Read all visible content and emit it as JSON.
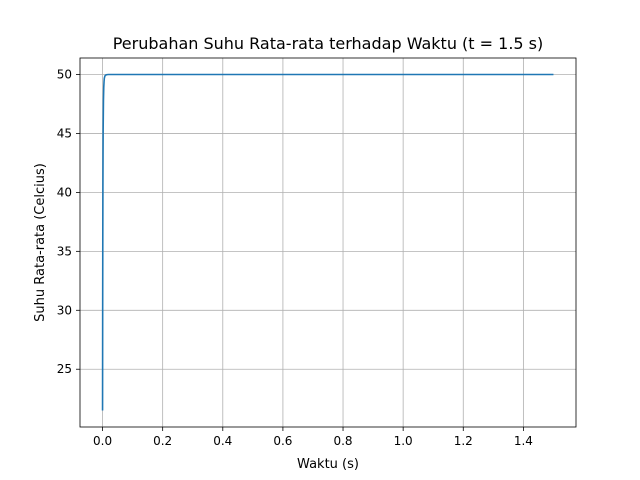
{
  "chart_data": {
    "type": "line",
    "title": "Perubahan Suhu Rata-rata terhadap Waktu (t = 1.5 s)",
    "xlabel": "Waktu (s)",
    "ylabel": "Suhu Rata-rata (Celcius)",
    "xlim": [
      -0.075,
      1.575
    ],
    "ylim": [
      20.1,
      51.4
    ],
    "x_ticks": [
      0.0,
      0.2,
      0.4,
      0.6,
      0.8,
      1.0,
      1.2,
      1.4
    ],
    "x_tick_labels": [
      "0.0",
      "0.2",
      "0.4",
      "0.6",
      "0.8",
      "1.0",
      "1.2",
      "1.4"
    ],
    "y_ticks": [
      25,
      30,
      35,
      40,
      45,
      50
    ],
    "y_tick_labels": [
      "25",
      "30",
      "35",
      "40",
      "45",
      "50"
    ],
    "grid": true,
    "colors": {
      "series": "#1f77b4"
    },
    "series": [
      {
        "x": [
          0.0,
          0.0004,
          0.0008,
          0.0012,
          0.0016,
          0.002,
          0.003,
          0.004,
          0.005,
          0.006,
          0.008,
          0.01,
          0.015,
          0.02,
          0.05,
          0.1,
          0.5,
          1.0,
          1.5
        ],
        "values": [
          21.5,
          30.0,
          36.0,
          40.2,
          43.2,
          45.3,
          47.8,
          48.9,
          49.4,
          49.7,
          49.88,
          49.95,
          49.99,
          50.0,
          50.0,
          50.0,
          50.0,
          50.0,
          50.0
        ]
      }
    ]
  }
}
